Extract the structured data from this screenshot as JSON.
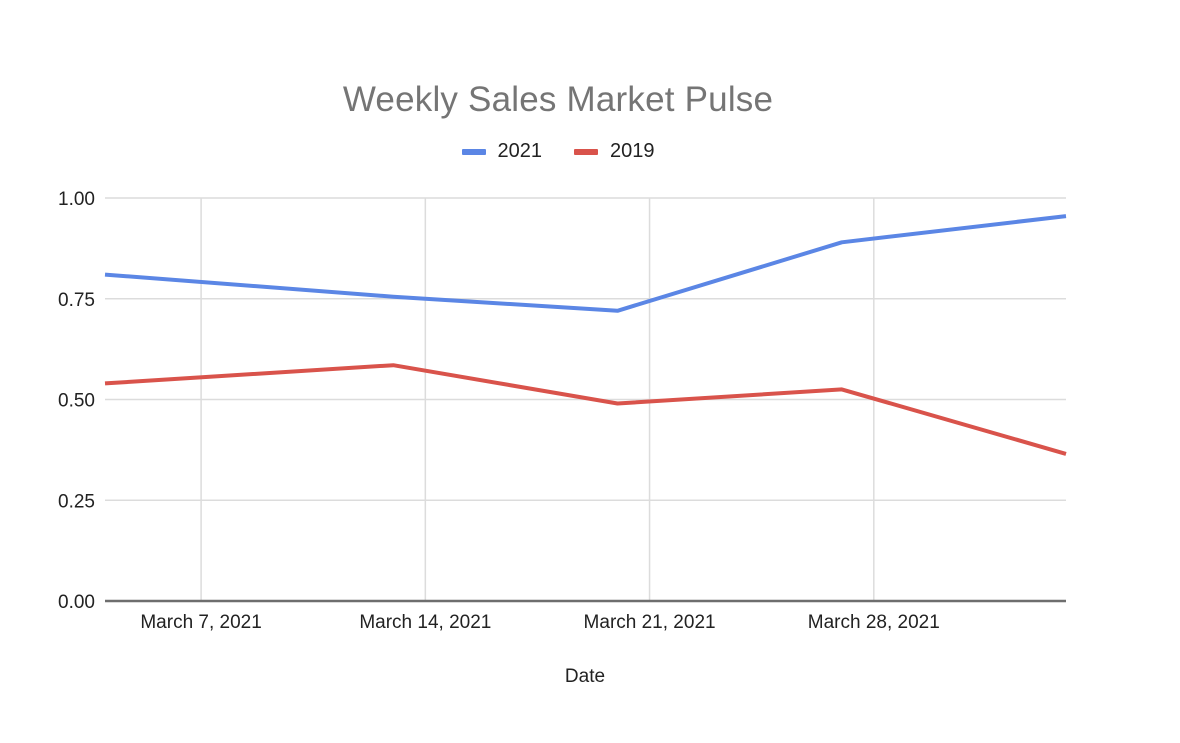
{
  "chart_data": {
    "type": "line",
    "title": "Weekly Sales Market Pulse",
    "xlabel": "Date",
    "ylabel": "",
    "x": [
      "2021-03-04",
      "2021-03-13",
      "2021-03-20",
      "2021-03-27",
      "2021-04-03"
    ],
    "xlim": [
      "2021-03-04",
      "2021-04-03"
    ],
    "x_ticks": [
      "2021-03-07",
      "2021-03-14",
      "2021-03-21",
      "2021-03-28"
    ],
    "x_tick_labels": [
      "March 7, 2021",
      "March 14, 2021",
      "March 21, 2021",
      "March 28, 2021"
    ],
    "ylim": [
      0,
      1
    ],
    "y_ticks": [
      0,
      0.25,
      0.5,
      0.75,
      1.0
    ],
    "y_tick_labels": [
      "0.00",
      "0.25",
      "0.50",
      "0.75",
      "1.00"
    ],
    "grid": true,
    "legend_position": "top",
    "series": [
      {
        "name": "2021",
        "color": "#5B86E5",
        "values": [
          0.81,
          0.755,
          0.72,
          0.89,
          0.955
        ]
      },
      {
        "name": "2019",
        "color": "#D9534B",
        "values": [
          0.54,
          0.585,
          0.49,
          0.525,
          0.365
        ]
      }
    ]
  }
}
